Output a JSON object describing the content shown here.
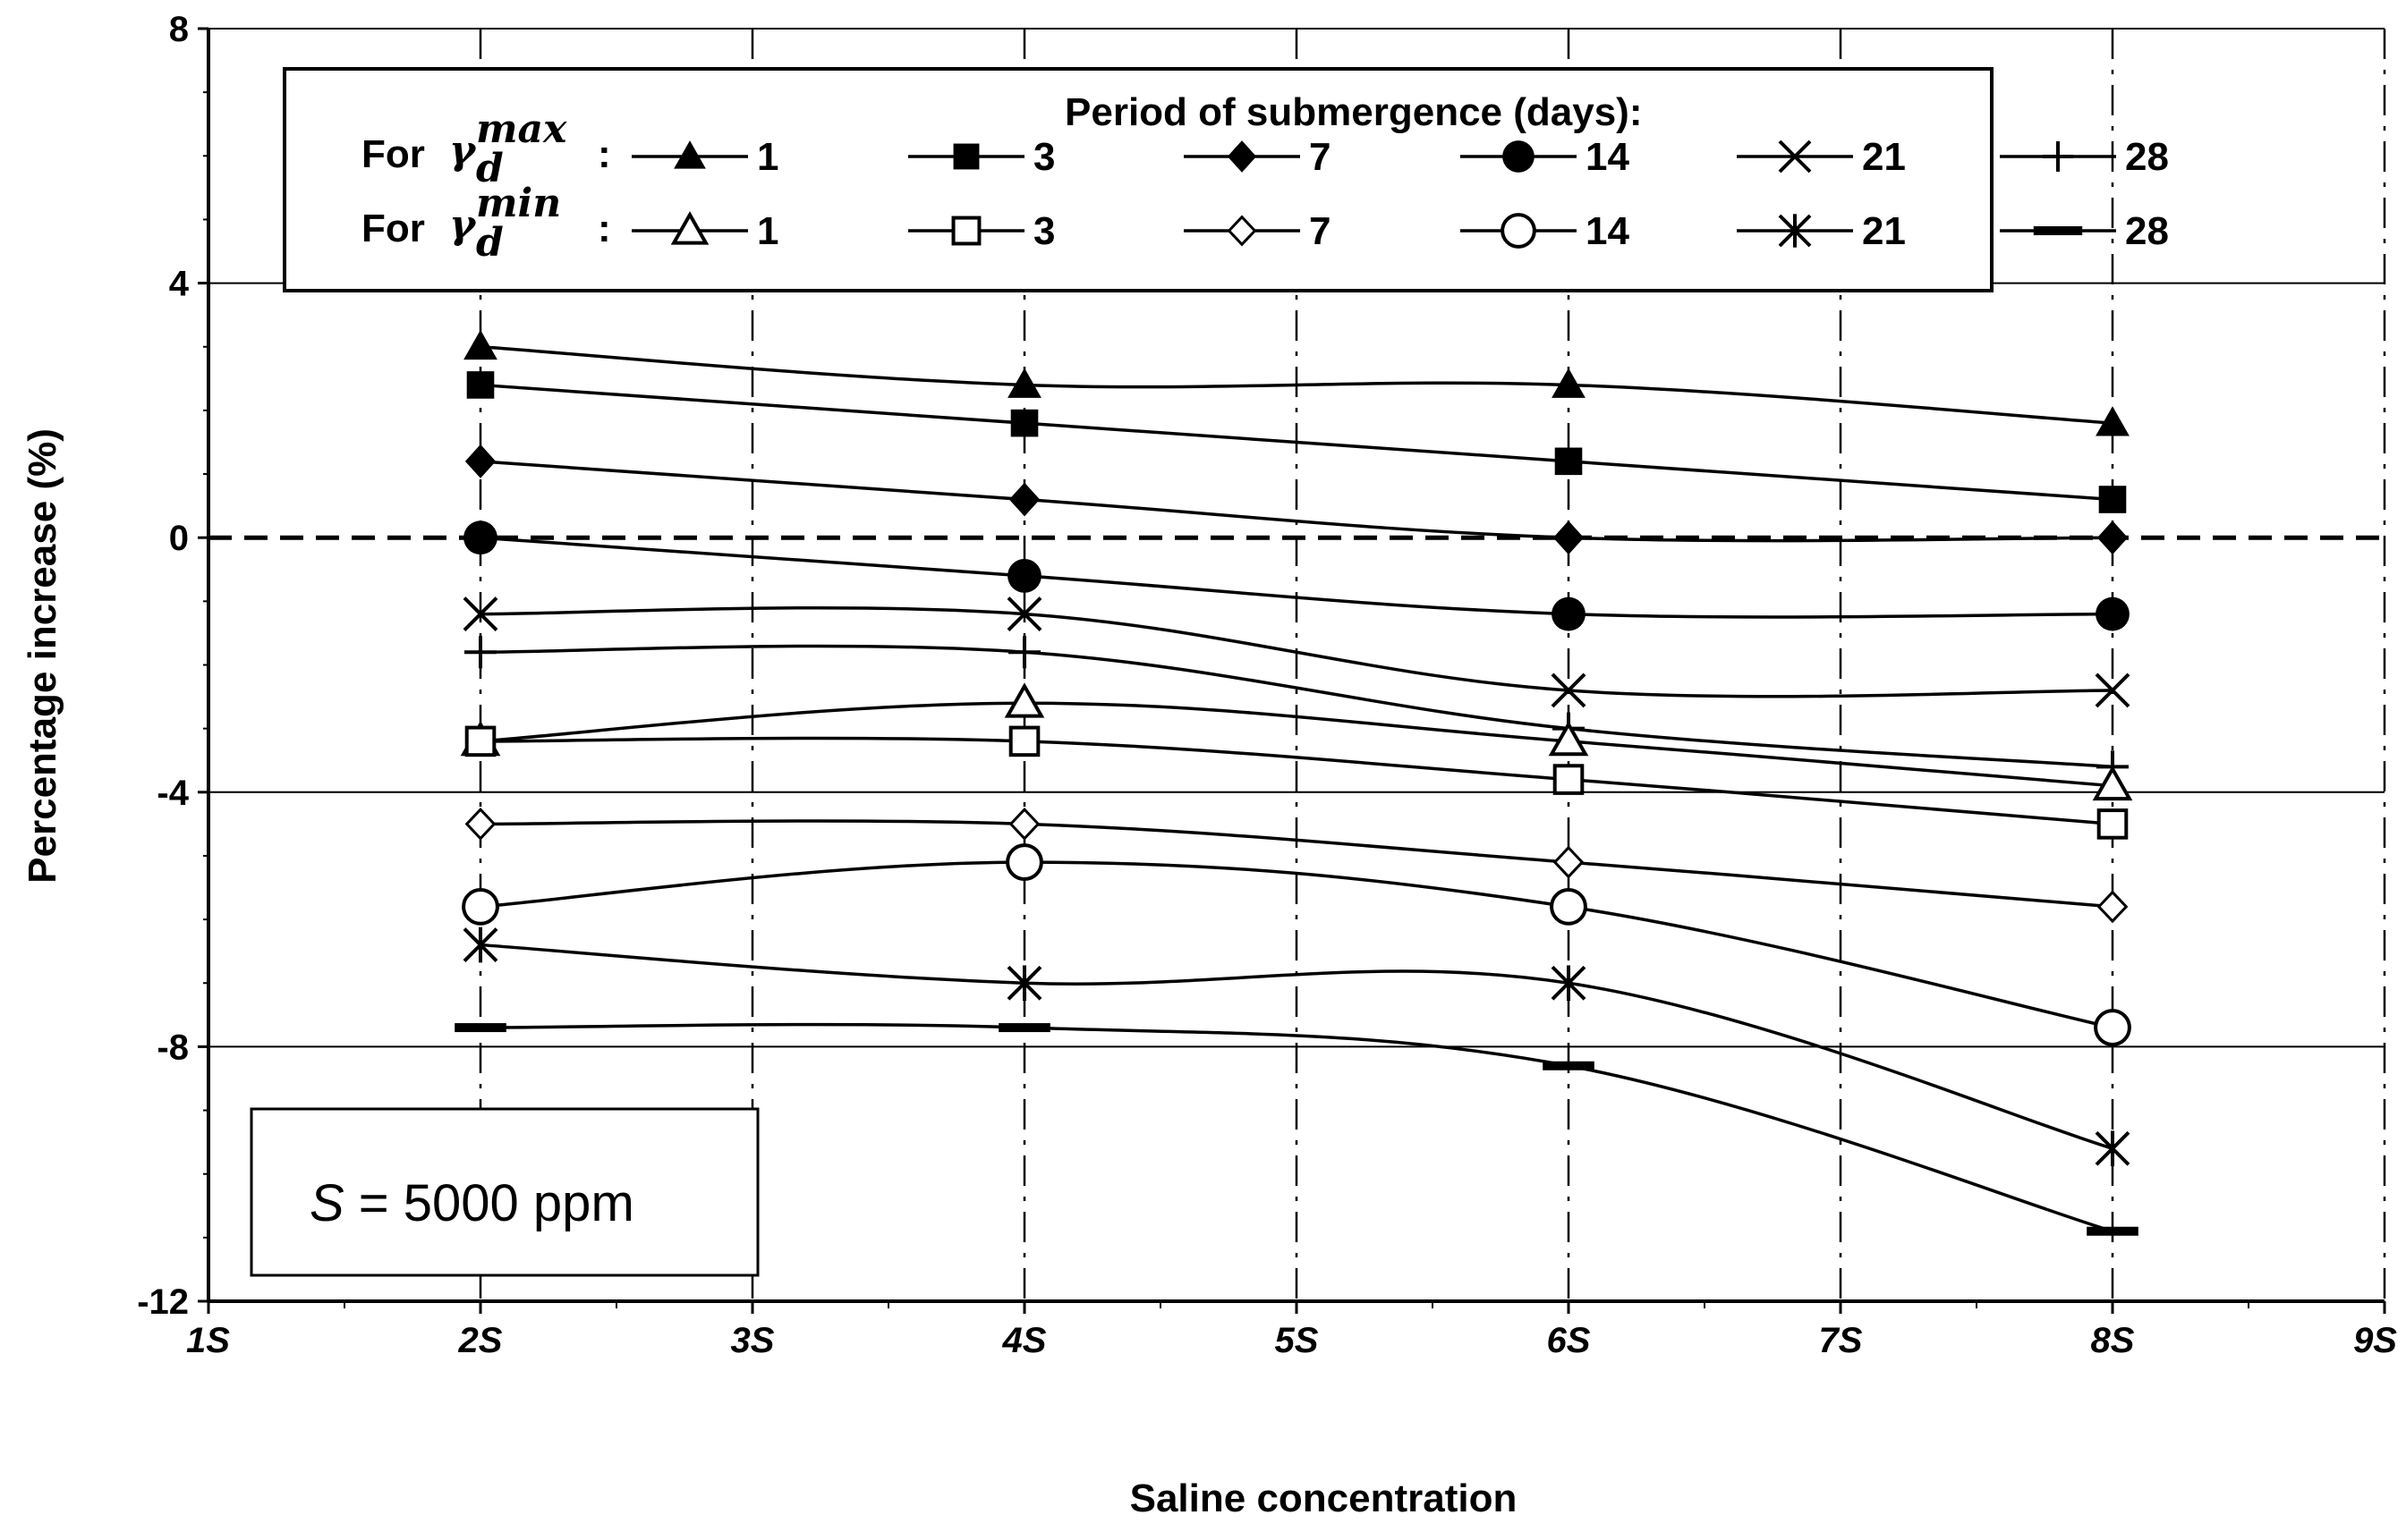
{
  "chart_data": {
    "type": "line",
    "title": "",
    "xlabel": "Saline concentration",
    "ylabel": "Percentage increase (%)",
    "x_ticks": [
      "1S",
      "2S",
      "3S",
      "4S",
      "5S",
      "6S",
      "7S",
      "8S",
      "9S"
    ],
    "y_ticks": [
      "8",
      "4",
      "0",
      "-4",
      "-8",
      "-12"
    ],
    "xlim": [
      1,
      9
    ],
    "ylim": [
      -12,
      8
    ],
    "x": [
      2,
      4,
      6,
      8
    ],
    "legend_title": "Period of submergence (days):",
    "legend_group_max": {
      "prefix": "For",
      "symbol": "γ",
      "sub": "d",
      "sup": "max"
    },
    "legend_group_min": {
      "prefix": "For",
      "symbol": "γ",
      "sub": "d",
      "sup": "min"
    },
    "series": [
      {
        "group": "max",
        "name": "1",
        "marker": "triangle-filled",
        "values": [
          3.0,
          2.4,
          2.4,
          1.8
        ]
      },
      {
        "group": "max",
        "name": "3",
        "marker": "square-filled",
        "values": [
          2.4,
          1.8,
          1.2,
          0.6
        ]
      },
      {
        "group": "max",
        "name": "7",
        "marker": "diamond-filled",
        "values": [
          1.2,
          0.6,
          0.0,
          0.0
        ]
      },
      {
        "group": "max",
        "name": "14",
        "marker": "circle-filled",
        "values": [
          0.0,
          -0.6,
          -1.2,
          -1.2
        ]
      },
      {
        "group": "max",
        "name": "21",
        "marker": "x",
        "values": [
          -1.2,
          -1.2,
          -2.4,
          -2.4
        ]
      },
      {
        "group": "max",
        "name": "28",
        "marker": "plus",
        "values": [
          -1.8,
          -1.8,
          -3.0,
          -3.6
        ]
      },
      {
        "group": "min",
        "name": "1",
        "marker": "triangle-open",
        "values": [
          -3.2,
          -2.6,
          -3.2,
          -3.9
        ]
      },
      {
        "group": "min",
        "name": "3",
        "marker": "square-open",
        "values": [
          -3.2,
          -3.2,
          -3.8,
          -4.5
        ]
      },
      {
        "group": "min",
        "name": "7",
        "marker": "diamond-open",
        "values": [
          -4.5,
          -4.5,
          -5.1,
          -5.8
        ]
      },
      {
        "group": "min",
        "name": "14",
        "marker": "circle-open",
        "values": [
          -5.8,
          -5.1,
          -5.8,
          -7.7
        ]
      },
      {
        "group": "min",
        "name": "21",
        "marker": "asterisk",
        "values": [
          -6.4,
          -7.0,
          -7.0,
          -9.6
        ]
      },
      {
        "group": "min",
        "name": "28",
        "marker": "dash",
        "values": [
          -7.7,
          -7.7,
          -8.3,
          -10.9
        ]
      }
    ],
    "annotation": {
      "italic_part": "S",
      "rest": " = 5000 ppm"
    },
    "reference_line": {
      "y": 0,
      "style": "dashed"
    },
    "grid": true,
    "legend_position": "top"
  }
}
